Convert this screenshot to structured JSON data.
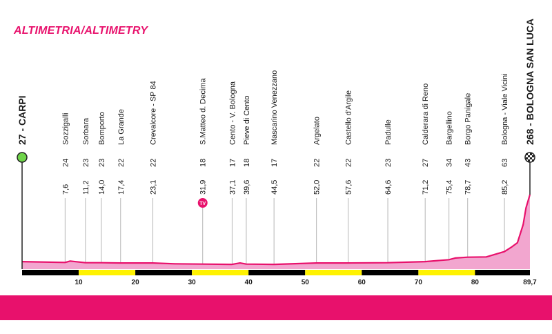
{
  "title": "ALTIMETRIA/ALTIMETRY",
  "colors": {
    "accent": "#e8116c",
    "profile_fill": "#f2a6cf",
    "profile_line": "#e8116c",
    "start_marker": "#6fd44a",
    "tv_badge": "#e8116c",
    "axis_black": "#000000",
    "axis_yellow": "#fff200"
  },
  "chart_data": {
    "type": "area",
    "title": "ALTIMETRIA/ALTIMETRY",
    "x_unit": "km",
    "xlim": [
      0,
      89.7
    ],
    "x_ticks": [
      "10",
      "20",
      "30",
      "40",
      "50",
      "60",
      "70",
      "80",
      "89,7"
    ],
    "start": {
      "altitude": "27",
      "name": "CARPI"
    },
    "finish": {
      "altitude": "268",
      "name": "BOLOGNA SAN LUCA"
    },
    "waypoints": [
      {
        "km": "7,6",
        "altitude": "24",
        "name": "Sozzigalli",
        "x": 7.6
      },
      {
        "km": "11,2",
        "altitude": "23",
        "name": "Sorbara",
        "x": 11.2
      },
      {
        "km": "14,0",
        "altitude": "23",
        "name": "Bomporto",
        "x": 14.0
      },
      {
        "km": "17,4",
        "altitude": "22",
        "name": "La Grande",
        "x": 17.4
      },
      {
        "km": "23,1",
        "altitude": "22",
        "name": "Crevalcore - SP 84",
        "x": 23.1
      },
      {
        "km": "31,9",
        "altitude": "18",
        "name": "S.Matteo d. Decima",
        "x": 31.9,
        "tv": "TV"
      },
      {
        "km": "37,1",
        "altitude": "17",
        "name": "Cento - V. Bologna",
        "x": 37.1
      },
      {
        "km": "39,6",
        "altitude": "18",
        "name": "Pieve di Cento",
        "x": 39.6
      },
      {
        "km": "44,5",
        "altitude": "17",
        "name": "Mascarino Venezzano",
        "x": 44.5
      },
      {
        "km": "52,0",
        "altitude": "22",
        "name": "Argelato",
        "x": 52.0
      },
      {
        "km": "57,6",
        "altitude": "22",
        "name": "Castello d'Argile",
        "x": 57.6
      },
      {
        "km": "64,6",
        "altitude": "23",
        "name": "Padulle",
        "x": 64.6
      },
      {
        "km": "71,2",
        "altitude": "27",
        "name": "Calderara di Reno",
        "x": 71.2
      },
      {
        "km": "75,4",
        "altitude": "34",
        "name": "Bargellino",
        "x": 75.4
      },
      {
        "km": "78,7",
        "altitude": "43",
        "name": "Borgo Panigale",
        "x": 78.7
      },
      {
        "km": "85,2",
        "altitude": "63",
        "name": "Bologna - Viale Vicini",
        "x": 85.2
      }
    ],
    "profile": {
      "x": [
        0,
        7.6,
        8.5,
        11.2,
        14.0,
        17.4,
        23.1,
        27.0,
        31.9,
        37.1,
        38.5,
        39.6,
        44.5,
        52.0,
        57.6,
        64.6,
        71.2,
        75.4,
        76.5,
        78.7,
        82.0,
        85.2,
        86.5,
        87.5,
        88.5,
        89.0,
        89.7
      ],
      "y": [
        27,
        24,
        29,
        23,
        23,
        22,
        22,
        19,
        18,
        17,
        22,
        18,
        17,
        22,
        22,
        23,
        27,
        34,
        40,
        43,
        44,
        63,
        80,
        95,
        160,
        220,
        268
      ]
    },
    "ylim": [
      0,
      268
    ]
  }
}
